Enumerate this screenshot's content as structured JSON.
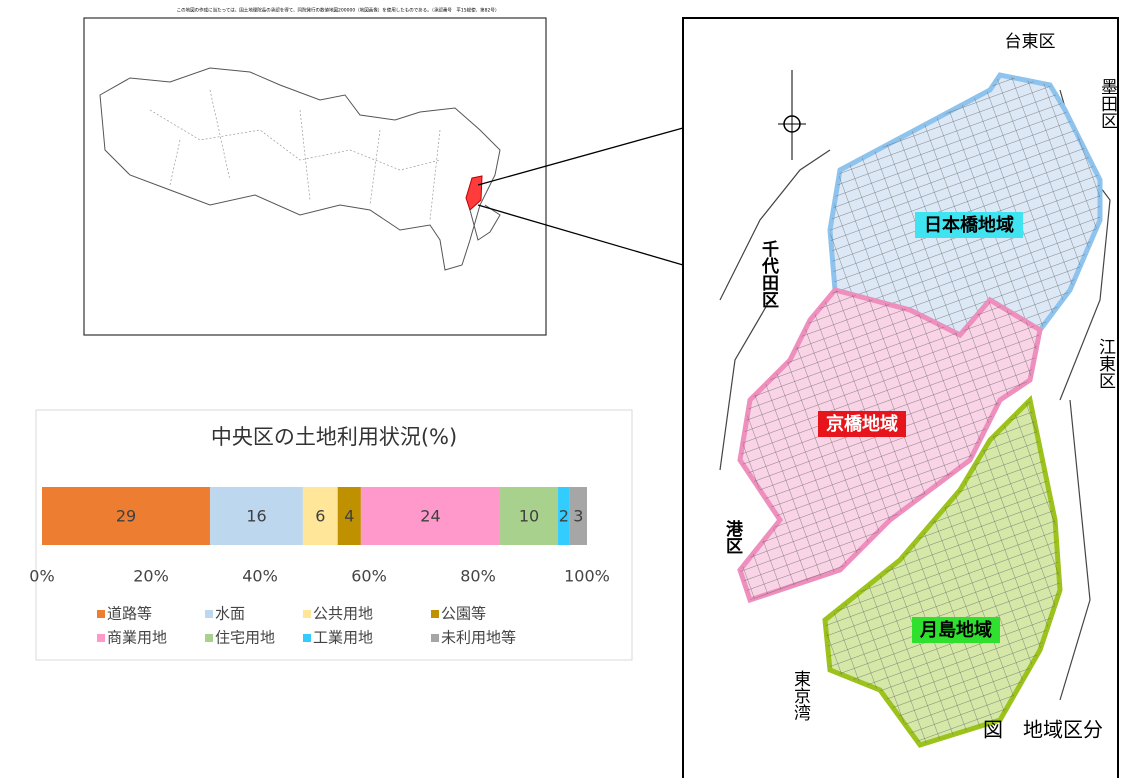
{
  "chart_data": {
    "type": "bar100",
    "title": "中央区の土地利用状況(%)",
    "series": [
      {
        "name": "道路等",
        "color": "#ed7d31",
        "values": [
          29
        ]
      },
      {
        "name": "水面",
        "color": "#bdd7ee",
        "values": [
          16
        ]
      },
      {
        "name": "公共用地",
        "color": "#ffe699",
        "values": [
          6
        ]
      },
      {
        "name": "公園等",
        "color": "#bf9000",
        "values": [
          4
        ]
      },
      {
        "name": "商業用地",
        "color": "#ff99cc",
        "values": [
          24
        ]
      },
      {
        "name": "住宅用地",
        "color": "#a9d18e",
        "values": [
          10
        ]
      },
      {
        "name": "工業用地",
        "color": "#33ccff",
        "values": [
          2
        ]
      },
      {
        "name": "未利用地等",
        "color": "#a6a6a6",
        "values": [
          3
        ]
      }
    ],
    "xlim": [
      0,
      100
    ],
    "xticks": [
      {
        "value": 0,
        "label": "0%"
      },
      {
        "value": 20,
        "label": "20%"
      },
      {
        "value": 40,
        "label": "40%"
      },
      {
        "value": 60,
        "label": "60%"
      },
      {
        "value": 80,
        "label": "80%"
      },
      {
        "value": 100,
        "label": "100%"
      }
    ],
    "legend": "bottom"
  },
  "map": {
    "note": "この地図の作成に当たっては、国土地理院長の承認を得て、同院発行の数値地図200000（地図画像）を使用したものである。（承認番号　平15総使、第82号）",
    "wards": [
      "台東区",
      "墨田区",
      "千代田区",
      "江東区",
      "港区",
      "東京湾"
    ],
    "districts": [
      "日本橋地域",
      "京橋地域",
      "月島地域"
    ],
    "caption": "図　地域区分"
  }
}
